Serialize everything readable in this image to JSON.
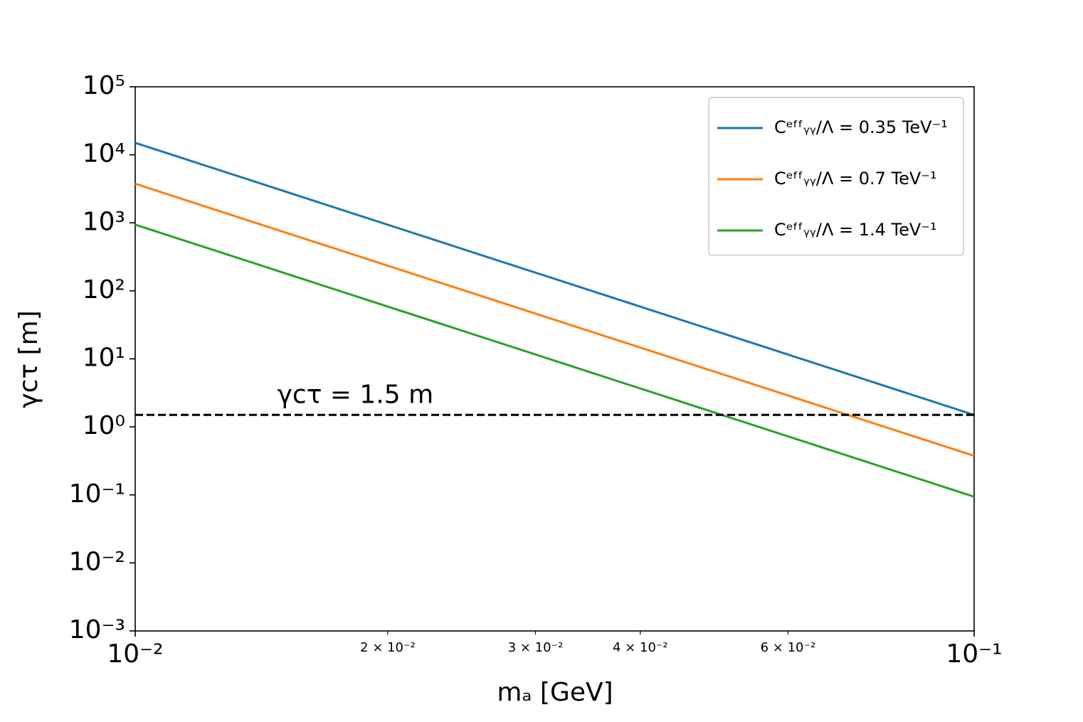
{
  "chart_data": {
    "type": "line",
    "x_label": "mₐ [GeV]",
    "y_label": "γcτ [m]",
    "x_scale": "log",
    "y_scale": "log",
    "xlim": [
      0.01,
      0.1
    ],
    "ylim": [
      0.001,
      100000
    ],
    "xticks": [
      {
        "value": 0.01,
        "label": "10⁻²"
      },
      {
        "value": 0.1,
        "label": "10⁻¹"
      }
    ],
    "xticks_minor": [
      {
        "value": 0.02,
        "label": "2 × 10⁻²"
      },
      {
        "value": 0.03,
        "label": "3 × 10⁻²"
      },
      {
        "value": 0.04,
        "label": "4 × 10⁻²"
      },
      {
        "value": 0.06,
        "label": "6 × 10⁻²"
      }
    ],
    "yticks": [
      {
        "value": 0.001,
        "label": "10⁻³"
      },
      {
        "value": 0.01,
        "label": "10⁻²"
      },
      {
        "value": 0.1,
        "label": "10⁻¹"
      },
      {
        "value": 1,
        "label": "10⁰"
      },
      {
        "value": 10,
        "label": "10¹"
      },
      {
        "value": 100,
        "label": "10²"
      },
      {
        "value": 1000,
        "label": "10³"
      },
      {
        "value": 10000,
        "label": "10⁴"
      },
      {
        "value": 100000,
        "label": "10⁵"
      }
    ],
    "x": [
      0.01,
      0.1
    ],
    "series": [
      {
        "name": "Cᵉᶠᶠᵧᵧ/Λ = 0.35 TeV⁻¹",
        "color": "#1f77b4",
        "values": [
          15000,
          1.5
        ]
      },
      {
        "name": "Cᵉᶠᶠᵧᵧ/Λ = 0.7 TeV⁻¹",
        "color": "#ff7f0e",
        "values": [
          3750,
          0.375
        ]
      },
      {
        "name": "Cᵉᶠᶠᵧᵧ/Λ = 1.4 TeV⁻¹",
        "color": "#2ca02c",
        "values": [
          940,
          0.094
        ]
      }
    ],
    "reference_line": {
      "y": 1.5,
      "label": "γcτ = 1.5 m",
      "label_x": 0.015,
      "color": "#000000",
      "style": "dashed"
    },
    "legend": "upper right",
    "grid": false
  }
}
